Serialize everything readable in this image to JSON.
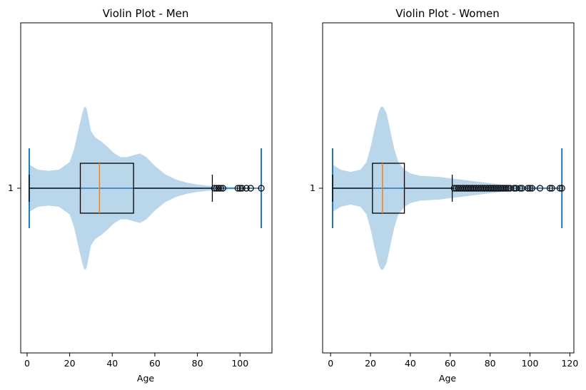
{
  "chart_data": [
    {
      "type": "violin",
      "title": "Violin Plot - Men",
      "xlabel": "Age",
      "ylabel": "",
      "xlim": [
        -3,
        115
      ],
      "xticks": [
        0,
        20,
        40,
        60,
        80,
        100
      ],
      "ytick_label": "1",
      "violin": {
        "min": 1,
        "max": 110,
        "density": [
          [
            1,
            0.38
          ],
          [
            5,
            0.3
          ],
          [
            10,
            0.28
          ],
          [
            15,
            0.3
          ],
          [
            20,
            0.42
          ],
          [
            22,
            0.62
          ],
          [
            24,
            0.92
          ],
          [
            26,
            1.22
          ],
          [
            27,
            1.32
          ],
          [
            28,
            1.28
          ],
          [
            30,
            0.92
          ],
          [
            32,
            0.82
          ],
          [
            35,
            0.75
          ],
          [
            38,
            0.66
          ],
          [
            41,
            0.56
          ],
          [
            44,
            0.5
          ],
          [
            47,
            0.5
          ],
          [
            50,
            0.53
          ],
          [
            53,
            0.56
          ],
          [
            56,
            0.5
          ],
          [
            60,
            0.36
          ],
          [
            65,
            0.22
          ],
          [
            70,
            0.14
          ],
          [
            75,
            0.09
          ],
          [
            80,
            0.06
          ],
          [
            85,
            0.04
          ],
          [
            90,
            0.03
          ],
          [
            95,
            0.02
          ],
          [
            100,
            0.015
          ],
          [
            105,
            0.01
          ],
          [
            110,
            0.005
          ]
        ]
      },
      "boxplot": {
        "whisker_low": 1,
        "q1": 25,
        "median": 34,
        "q3": 50,
        "whisker_high": 87,
        "outliers": [
          88,
          89,
          90,
          91,
          92,
          99,
          100,
          101,
          103,
          105,
          110
        ]
      }
    },
    {
      "type": "violin",
      "title": "Violin Plot - Women",
      "xlabel": "Age",
      "ylabel": "",
      "xlim": [
        -4,
        122
      ],
      "xticks": [
        0,
        20,
        40,
        60,
        80,
        100,
        120
      ],
      "ytick_label": "1",
      "violin": {
        "min": 1,
        "max": 116,
        "density": [
          [
            1,
            0.38
          ],
          [
            5,
            0.3
          ],
          [
            10,
            0.26
          ],
          [
            15,
            0.3
          ],
          [
            18,
            0.42
          ],
          [
            20,
            0.65
          ],
          [
            22,
            0.95
          ],
          [
            24,
            1.22
          ],
          [
            25,
            1.3
          ],
          [
            26,
            1.32
          ],
          [
            28,
            1.22
          ],
          [
            30,
            0.92
          ],
          [
            32,
            0.62
          ],
          [
            34,
            0.42
          ],
          [
            37,
            0.3
          ],
          [
            40,
            0.24
          ],
          [
            45,
            0.2
          ],
          [
            50,
            0.19
          ],
          [
            55,
            0.18
          ],
          [
            60,
            0.16
          ],
          [
            65,
            0.14
          ],
          [
            70,
            0.12
          ],
          [
            75,
            0.1
          ],
          [
            80,
            0.08
          ],
          [
            85,
            0.06
          ],
          [
            90,
            0.05
          ],
          [
            95,
            0.035
          ],
          [
            100,
            0.025
          ],
          [
            105,
            0.018
          ],
          [
            110,
            0.012
          ],
          [
            116,
            0.005
          ]
        ]
      },
      "boxplot": {
        "whisker_low": 1,
        "q1": 21,
        "median": 26,
        "q3": 37,
        "whisker_high": 61,
        "outliers": [
          62,
          63,
          64,
          65,
          66,
          67,
          68,
          69,
          70,
          71,
          72,
          73,
          74,
          75,
          76,
          77,
          78,
          79,
          80,
          81,
          82,
          83,
          84,
          85,
          86,
          87,
          88,
          89,
          90,
          92,
          93,
          95,
          96,
          99,
          100,
          101,
          105,
          110,
          111,
          115,
          116
        ]
      }
    }
  ],
  "colors": {
    "violin_fill": "#bad6ea",
    "extrema_line": "#1f77b4",
    "median_line": "#ff7f0e",
    "box_line": "#000000"
  }
}
